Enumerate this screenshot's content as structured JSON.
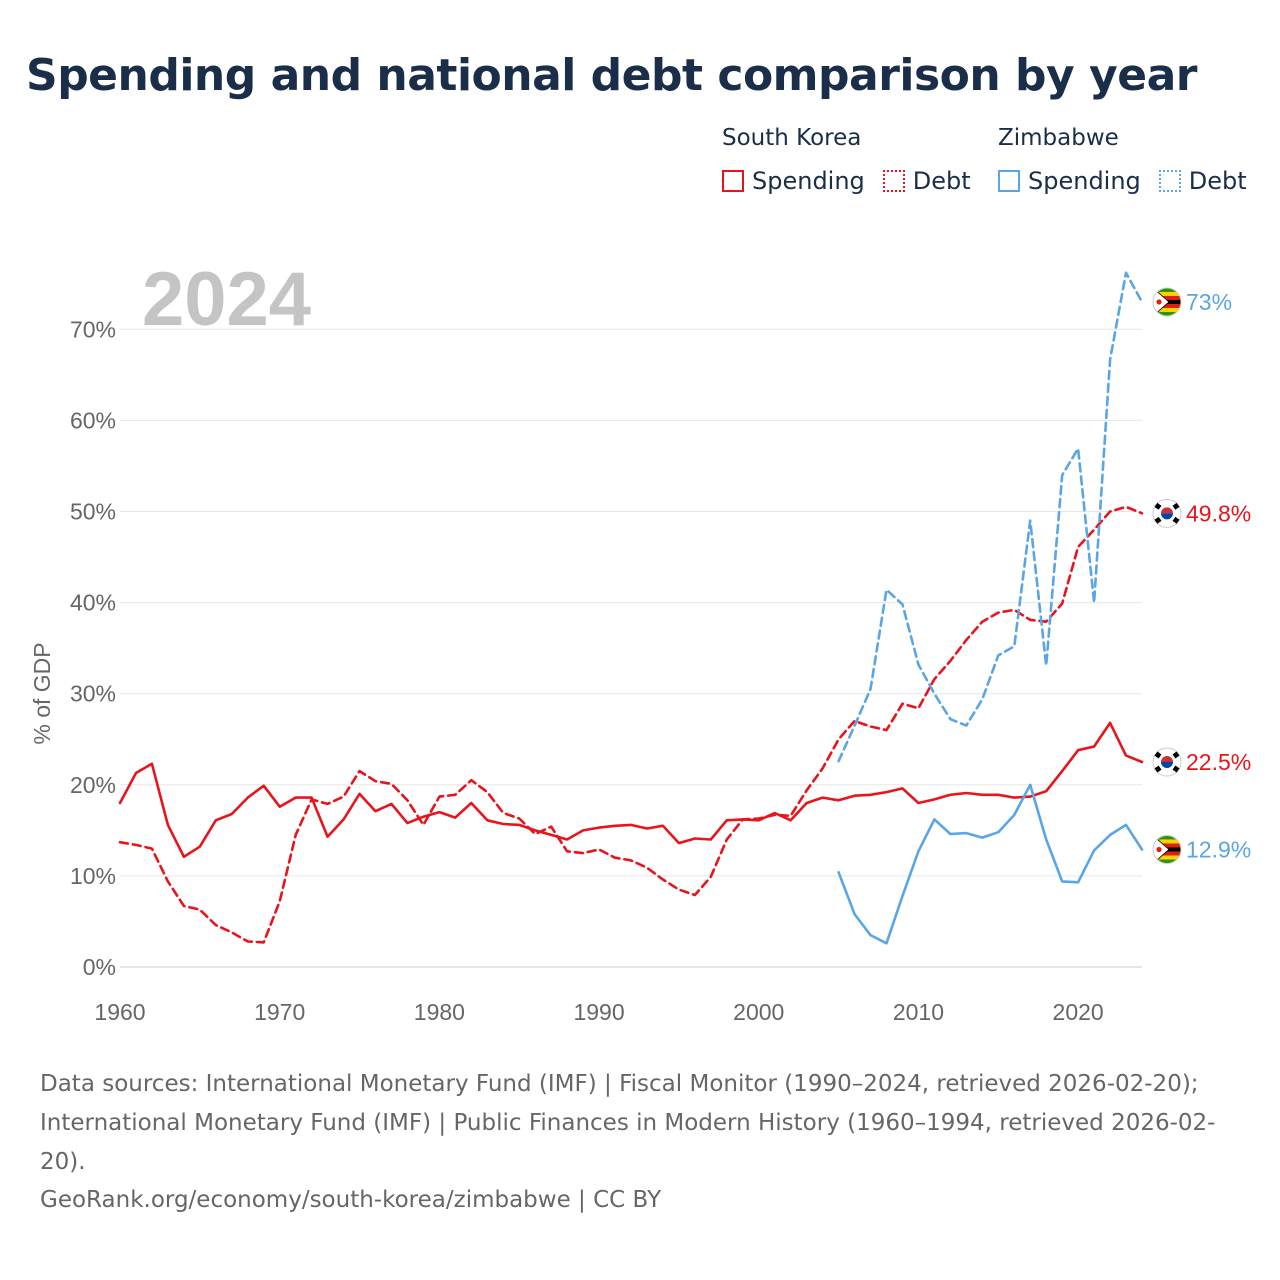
{
  "title": "Spending and national debt comparison by year",
  "legend": {
    "groups": [
      {
        "name": "South Korea",
        "color": "#e8141c",
        "items": [
          {
            "label": "Spending",
            "style": "solid"
          },
          {
            "label": "Debt",
            "style": "dotted"
          }
        ]
      },
      {
        "name": "Zimbabwe",
        "color": "#5aa5e6",
        "items": [
          {
            "label": "Spending",
            "style": "solid"
          },
          {
            "label": "Debt",
            "style": "dotted"
          }
        ]
      }
    ]
  },
  "chart_data": {
    "type": "line",
    "year_label": "2024",
    "ylabel": "% of GDP",
    "xlim": [
      1960,
      2024
    ],
    "ylim": [
      0,
      75
    ],
    "x_ticks": [
      1960,
      1970,
      1980,
      1990,
      2000,
      2010,
      2020
    ],
    "y_ticks": [
      0,
      10,
      20,
      30,
      40,
      50,
      60,
      70
    ],
    "y_tick_labels": [
      "0%",
      "10%",
      "20%",
      "30%",
      "40%",
      "50%",
      "60%",
      "70%"
    ],
    "series": [
      {
        "name": "South Korea Spending",
        "country": "South Korea",
        "metric": "Spending",
        "color": "#e8141c",
        "dash": "solid",
        "start_year": 1960,
        "values": [
          18.0,
          21.3,
          22.3,
          15.6,
          12.1,
          13.2,
          16.1,
          16.8,
          18.6,
          19.9,
          17.6,
          18.6,
          18.6,
          14.3,
          16.2,
          19.0,
          17.1,
          17.9,
          15.8,
          16.5,
          17.0,
          16.4,
          18.0,
          16.1,
          15.7,
          15.6,
          15.0,
          14.5,
          14.0,
          15.0,
          15.3,
          15.5,
          15.6,
          15.2,
          15.5,
          13.6,
          14.1,
          14.0,
          16.1,
          16.2,
          16.1,
          16.9,
          16.1,
          18.0,
          18.6,
          18.3,
          18.8,
          18.9,
          19.2,
          19.6,
          18.0,
          18.4,
          18.9,
          19.1,
          18.9,
          18.9,
          18.6,
          18.7,
          19.3,
          21.5,
          23.8,
          24.2,
          26.8,
          23.2,
          22.5
        ],
        "end_label": "22.5%"
      },
      {
        "name": "South Korea Debt",
        "country": "South Korea",
        "metric": "Debt",
        "color": "#e8141c",
        "dash": "dashed",
        "start_year": 1960,
        "values": [
          13.7,
          13.4,
          13.0,
          9.4,
          6.7,
          6.3,
          4.6,
          3.8,
          2.8,
          2.7,
          7.2,
          14.5,
          18.4,
          17.9,
          18.7,
          21.5,
          20.4,
          20.1,
          18.3,
          15.6,
          18.7,
          18.9,
          20.5,
          19.2,
          16.9,
          16.3,
          14.6,
          15.4,
          12.7,
          12.5,
          12.9,
          12.0,
          11.7,
          10.9,
          9.6,
          8.5,
          7.9,
          9.9,
          14.0,
          16.2,
          16.3,
          16.7,
          16.6,
          19.4,
          21.8,
          25.0,
          27.0,
          26.4,
          26.0,
          28.9,
          28.4,
          31.6,
          33.6,
          35.9,
          37.9,
          38.9,
          39.2,
          38.1,
          37.9,
          39.9,
          46.1,
          48.0,
          50.0,
          50.5,
          49.8
        ],
        "end_label": "49.8%"
      },
      {
        "name": "Zimbabwe Spending",
        "country": "Zimbabwe",
        "metric": "Spending",
        "color": "#5aa5e6",
        "dash": "solid",
        "start_year": 2005,
        "values": [
          10.4,
          5.8,
          3.5,
          2.6,
          7.8,
          12.7,
          16.2,
          14.6,
          14.7,
          14.2,
          14.8,
          16.7,
          20.0,
          14.0,
          9.4,
          9.3,
          12.8,
          14.5,
          15.6,
          12.9
        ],
        "end_label": "12.9%"
      },
      {
        "name": "Zimbabwe Debt",
        "country": "Zimbabwe",
        "metric": "Debt",
        "color": "#5aa5e6",
        "dash": "dashed",
        "start_year": 2005,
        "values": [
          22.6,
          26.5,
          30.5,
          41.4,
          39.8,
          33.2,
          30.0,
          27.2,
          26.5,
          29.4,
          34.2,
          35.2,
          49.0,
          33.1,
          54.0,
          56.9,
          40.0,
          66.7,
          76.2,
          73.0
        ],
        "end_label": "73%"
      }
    ]
  },
  "footer": {
    "sources": "Data sources: International Monetary Fund (IMF) | Fiscal Monitor (1990–2024, retrieved 2026-02-20); International Monetary Fund (IMF) | Public Finances in Modern History (1960–1994, retrieved 2026-02-20).",
    "credit": "GeoRank.org/economy/south-korea/zimbabwe | CC BY"
  }
}
